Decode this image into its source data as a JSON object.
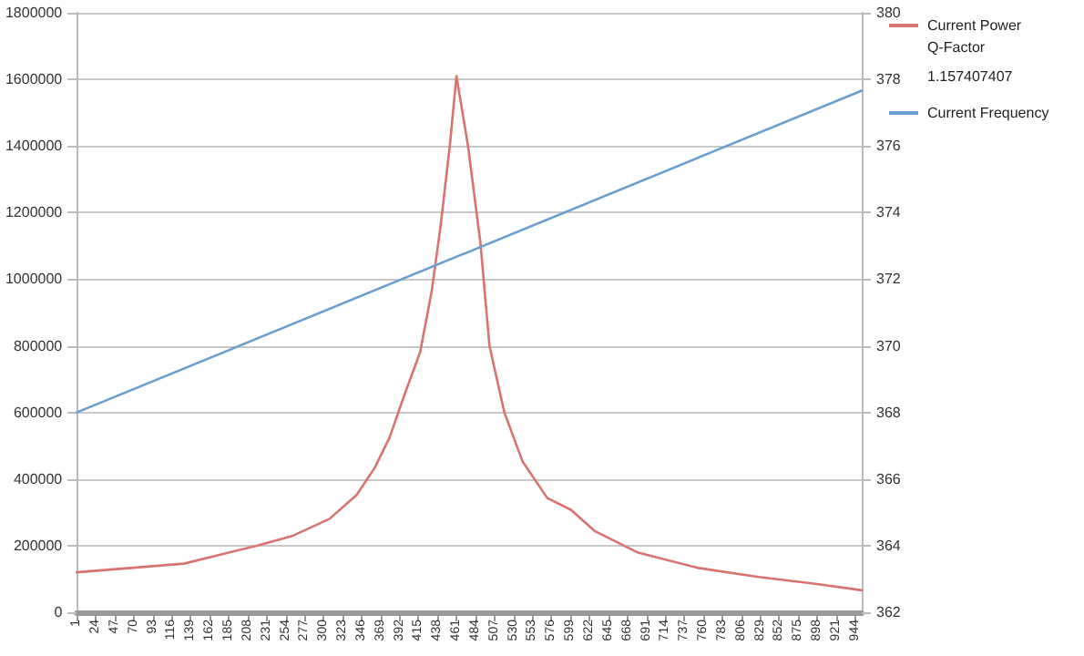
{
  "chart_data": {
    "type": "line",
    "legend": "right",
    "grid": "y",
    "marker": "none",
    "line_style": "solid",
    "annotations": [
      "Q-Factor",
      "1.157407407"
    ],
    "xlim": [
      1,
      952
    ],
    "xticks": [
      1,
      24,
      47,
      70,
      93,
      116,
      139,
      162,
      185,
      208,
      231,
      254,
      277,
      300,
      323,
      346,
      369,
      392,
      415,
      438,
      461,
      484,
      507,
      530,
      553,
      576,
      599,
      622,
      645,
      668,
      691,
      714,
      737,
      760,
      783,
      806,
      829,
      852,
      875,
      898,
      921,
      944
    ],
    "ylim": [
      0,
      1800000
    ],
    "yticks": [
      0,
      200000,
      400000,
      600000,
      800000,
      1000000,
      1200000,
      1400000,
      1600000,
      1800000
    ],
    "y2lim": [
      362,
      380
    ],
    "y2ticks": [
      362,
      364,
      366,
      368,
      370,
      372,
      374,
      376,
      378,
      380
    ],
    "series": [
      {
        "name": "Current Power",
        "color": "#d9736f",
        "x": [
          1,
          131,
          219,
          263,
          307,
          340,
          362,
          380,
          398,
          417,
          431,
          442,
          453,
          461,
          475,
          490,
          501,
          519,
          541,
          571,
          600,
          629,
          681,
          754,
          827,
          900,
          952
        ],
        "values": [
          120000,
          146000,
          200000,
          230000,
          280000,
          352000,
          434000,
          525000,
          653000,
          781000,
          964000,
          1164000,
          1402000,
          1610000,
          1400000,
          1110000,
          800000,
          600000,
          453000,
          343000,
          307000,
          243000,
          179000,
          133000,
          106000,
          84000,
          66000
        ]
      },
      {
        "name": "Current Frequency",
        "color": "#6a9fd4",
        "axis": "y2",
        "x": [
          1,
          952
        ],
        "values": [
          368,
          377.66
        ]
      }
    ]
  }
}
